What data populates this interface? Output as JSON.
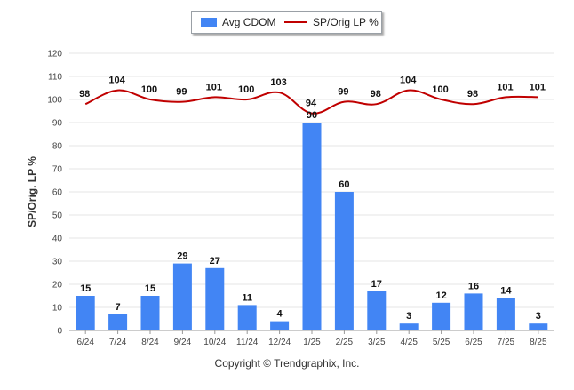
{
  "chart_data": {
    "type": "bar",
    "categories": [
      "6/24",
      "7/24",
      "8/24",
      "9/24",
      "10/24",
      "11/24",
      "12/24",
      "1/25",
      "2/25",
      "3/25",
      "4/25",
      "5/25",
      "6/25",
      "7/25",
      "8/25"
    ],
    "series": [
      {
        "name": "Avg CDOM",
        "kind": "bar",
        "color": "#4285f4",
        "values": [
          15,
          7,
          15,
          29,
          27,
          11,
          4,
          90,
          60,
          17,
          3,
          12,
          16,
          14,
          3
        ]
      },
      {
        "name": "SP/Orig LP %",
        "kind": "line",
        "color": "#c00000",
        "values": [
          98,
          104,
          100,
          99,
          101,
          100,
          103,
          94,
          99,
          98,
          104,
          100,
          98,
          101,
          101
        ]
      }
    ],
    "ylabel": "SP/Orig. LP %",
    "ylim": [
      0,
      120
    ],
    "yticks": [
      0,
      10,
      20,
      30,
      40,
      50,
      60,
      70,
      80,
      90,
      100,
      110,
      120
    ],
    "grid": true,
    "legend_position": "top-center"
  },
  "legend": {
    "bar_label": "Avg CDOM",
    "line_label": "SP/Orig LP %"
  },
  "footer": {
    "copyright": "Copyright © Trendgraphix, Inc."
  }
}
